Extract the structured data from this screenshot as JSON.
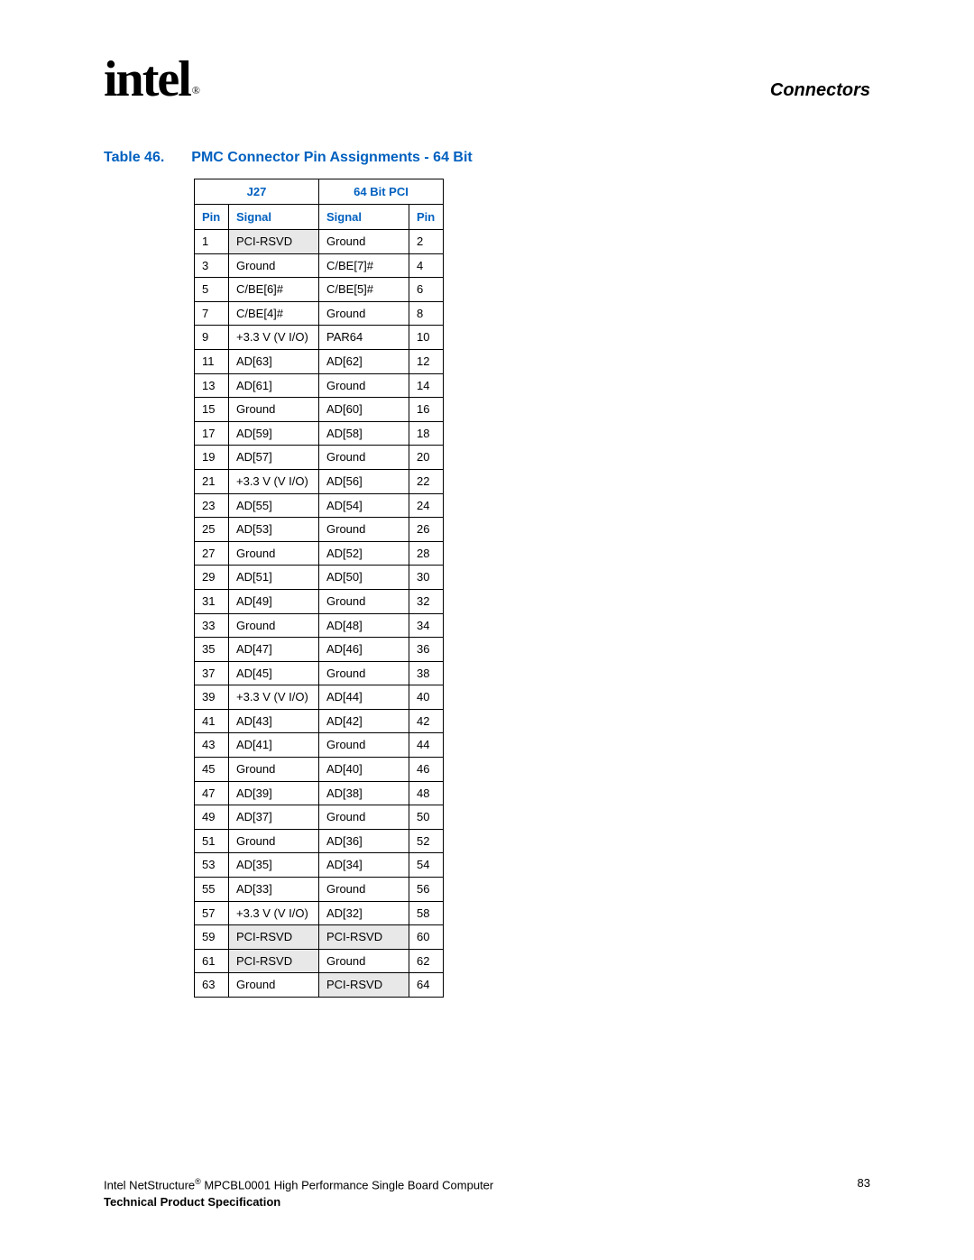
{
  "header": {
    "logo_text": "intel",
    "logo_reg": "®",
    "section": "Connectors"
  },
  "caption": {
    "num": "Table 46.",
    "title": "PMC Connector Pin Assignments - 64 Bit"
  },
  "table": {
    "top_left": "J27",
    "top_right": "64 Bit PCI",
    "col_pin": "Pin",
    "col_signal": "Signal",
    "rows": [
      {
        "p1": "1",
        "s1": "PCI-RSVD",
        "s1_shade": true,
        "s2": "Ground",
        "s2_shade": false,
        "p2": "2"
      },
      {
        "p1": "3",
        "s1": "Ground",
        "s1_shade": false,
        "s2": "C/BE[7]#",
        "s2_shade": false,
        "p2": "4"
      },
      {
        "p1": "5",
        "s1": "C/BE[6]#",
        "s1_shade": false,
        "s2": "C/BE[5]#",
        "s2_shade": false,
        "p2": "6"
      },
      {
        "p1": "7",
        "s1": "C/BE[4]#",
        "s1_shade": false,
        "s2": "Ground",
        "s2_shade": false,
        "p2": "8"
      },
      {
        "p1": "9",
        "s1": "+3.3 V (V I/O)",
        "s1_shade": false,
        "s2": "PAR64",
        "s2_shade": false,
        "p2": "10"
      },
      {
        "p1": "11",
        "s1": "AD[63]",
        "s1_shade": false,
        "s2": "AD[62]",
        "s2_shade": false,
        "p2": "12"
      },
      {
        "p1": "13",
        "s1": "AD[61]",
        "s1_shade": false,
        "s2": "Ground",
        "s2_shade": false,
        "p2": "14"
      },
      {
        "p1": "15",
        "s1": "Ground",
        "s1_shade": false,
        "s2": "AD[60]",
        "s2_shade": false,
        "p2": "16"
      },
      {
        "p1": "17",
        "s1": "AD[59]",
        "s1_shade": false,
        "s2": "AD[58]",
        "s2_shade": false,
        "p2": "18"
      },
      {
        "p1": "19",
        "s1": "AD[57]",
        "s1_shade": false,
        "s2": "Ground",
        "s2_shade": false,
        "p2": "20"
      },
      {
        "p1": "21",
        "s1": "+3.3 V (V I/O)",
        "s1_shade": false,
        "s2": "AD[56]",
        "s2_shade": false,
        "p2": "22"
      },
      {
        "p1": "23",
        "s1": "AD[55]",
        "s1_shade": false,
        "s2": "AD[54]",
        "s2_shade": false,
        "p2": "24"
      },
      {
        "p1": "25",
        "s1": "AD[53]",
        "s1_shade": false,
        "s2": "Ground",
        "s2_shade": false,
        "p2": "26"
      },
      {
        "p1": "27",
        "s1": "Ground",
        "s1_shade": false,
        "s2": "AD[52]",
        "s2_shade": false,
        "p2": "28"
      },
      {
        "p1": "29",
        "s1": "AD[51]",
        "s1_shade": false,
        "s2": "AD[50]",
        "s2_shade": false,
        "p2": "30"
      },
      {
        "p1": "31",
        "s1": "AD[49]",
        "s1_shade": false,
        "s2": "Ground",
        "s2_shade": false,
        "p2": "32"
      },
      {
        "p1": "33",
        "s1": "Ground",
        "s1_shade": false,
        "s2": "AD[48]",
        "s2_shade": false,
        "p2": "34"
      },
      {
        "p1": "35",
        "s1": "AD[47]",
        "s1_shade": false,
        "s2": "AD[46]",
        "s2_shade": false,
        "p2": "36"
      },
      {
        "p1": "37",
        "s1": "AD[45]",
        "s1_shade": false,
        "s2": "Ground",
        "s2_shade": false,
        "p2": "38"
      },
      {
        "p1": "39",
        "s1": "+3.3 V (V I/O)",
        "s1_shade": false,
        "s2": "AD[44]",
        "s2_shade": false,
        "p2": "40"
      },
      {
        "p1": "41",
        "s1": "AD[43]",
        "s1_shade": false,
        "s2": "AD[42]",
        "s2_shade": false,
        "p2": "42"
      },
      {
        "p1": "43",
        "s1": "AD[41]",
        "s1_shade": false,
        "s2": "Ground",
        "s2_shade": false,
        "p2": "44"
      },
      {
        "p1": "45",
        "s1": "Ground",
        "s1_shade": false,
        "s2": "AD[40]",
        "s2_shade": false,
        "p2": "46"
      },
      {
        "p1": "47",
        "s1": "AD[39]",
        "s1_shade": false,
        "s2": "AD[38]",
        "s2_shade": false,
        "p2": "48"
      },
      {
        "p1": "49",
        "s1": "AD[37]",
        "s1_shade": false,
        "s2": "Ground",
        "s2_shade": false,
        "p2": "50"
      },
      {
        "p1": "51",
        "s1": "Ground",
        "s1_shade": false,
        "s2": "AD[36]",
        "s2_shade": false,
        "p2": "52"
      },
      {
        "p1": "53",
        "s1": "AD[35]",
        "s1_shade": false,
        "s2": "AD[34]",
        "s2_shade": false,
        "p2": "54"
      },
      {
        "p1": "55",
        "s1": "AD[33]",
        "s1_shade": false,
        "s2": "Ground",
        "s2_shade": false,
        "p2": "56"
      },
      {
        "p1": "57",
        "s1": "+3.3 V (V I/O)",
        "s1_shade": false,
        "s2": "AD[32]",
        "s2_shade": false,
        "p2": "58"
      },
      {
        "p1": "59",
        "s1": "PCI-RSVD",
        "s1_shade": true,
        "s2": "PCI-RSVD",
        "s2_shade": true,
        "p2": "60"
      },
      {
        "p1": "61",
        "s1": "PCI-RSVD",
        "s1_shade": true,
        "s2": "Ground",
        "s2_shade": false,
        "p2": "62"
      },
      {
        "p1": "63",
        "s1": "Ground",
        "s1_shade": false,
        "s2": "PCI-RSVD",
        "s2_shade": true,
        "p2": "64"
      }
    ]
  },
  "footer": {
    "line1a": "Intel NetStructure",
    "line1_reg": "®",
    "line1b": " MPCBL0001 High Performance Single Board Computer",
    "line2": "Technical Product Specification",
    "page": "83"
  },
  "colors": {
    "link_blue": "#0060bf",
    "shade_gray": "#e8e8e8",
    "text": "#000000",
    "bg": "#ffffff"
  }
}
